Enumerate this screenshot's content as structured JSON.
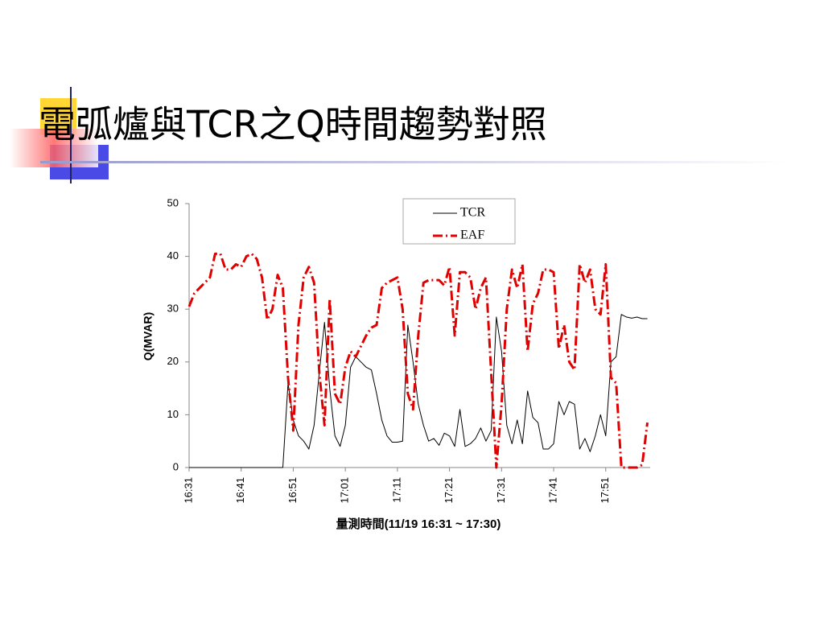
{
  "chart_data": {
    "type": "line",
    "title": "電弧爐與TCR之Q時間趨勢對照",
    "x_label": "量測時間(11/19 16:31 ~ 17:30)",
    "y_label": "Q(MVAR)",
    "x": [
      0,
      1,
      2,
      3,
      4,
      5,
      6,
      7,
      8,
      9,
      10,
      11,
      12,
      13,
      14,
      15,
      16,
      17,
      18,
      19,
      20,
      21,
      22,
      23,
      24,
      25,
      26,
      27,
      28,
      29,
      30,
      31,
      32,
      33,
      34,
      35,
      36,
      37,
      38,
      39,
      40,
      41,
      42,
      43,
      44,
      45,
      46,
      47,
      48,
      49,
      50,
      51,
      52,
      53,
      54,
      55,
      56,
      57,
      58,
      59,
      60,
      61,
      62,
      63,
      64,
      65,
      66,
      67,
      68,
      69,
      70,
      71,
      72,
      73,
      74,
      75,
      76,
      77,
      78,
      79,
      80,
      81,
      82,
      83,
      84,
      85,
      86,
      87,
      88
    ],
    "series": [
      {
        "name": "TCR",
        "color": "#000000",
        "values": [
          0,
          0,
          0,
          0,
          0,
          0,
          0,
          0,
          0,
          0,
          0,
          0,
          0,
          0,
          0,
          0,
          0,
          0,
          0,
          16,
          9,
          6,
          5,
          3.5,
          8,
          18,
          27.5,
          15,
          6,
          4,
          8,
          19,
          21,
          20,
          19,
          18.5,
          14,
          9,
          6,
          4.8,
          4.8,
          5,
          27,
          20,
          12,
          8,
          5,
          5.5,
          4.2,
          6.5,
          6,
          4,
          11,
          4,
          4.5,
          5.5,
          7.5,
          5,
          7,
          28.5,
          22,
          8,
          4.5,
          9,
          4.5,
          14.5,
          9.5,
          8.5,
          3.5,
          3.5,
          4.5,
          12.5,
          10,
          12.5,
          12,
          3.5,
          5.5,
          3,
          6,
          10,
          6,
          20,
          21,
          29,
          28.5,
          28.3,
          28.5,
          28.2,
          28.2
        ]
      },
      {
        "name": "EAF",
        "color": "#e00000",
        "values": [
          30.5,
          33,
          34,
          35,
          36,
          40.5,
          40.5,
          37.5,
          37.5,
          38.5,
          38,
          40,
          40.5,
          39.5,
          36,
          28,
          30,
          36.5,
          34,
          17,
          7,
          27,
          36,
          38,
          35,
          18,
          8,
          32,
          14,
          12,
          19,
          22,
          21,
          23,
          25,
          26.5,
          27,
          34,
          35,
          35.5,
          36,
          30,
          14,
          11,
          25,
          35,
          35.5,
          35.5,
          35.5,
          34.5,
          38,
          25,
          37,
          37,
          36,
          30,
          34,
          36,
          18,
          0,
          12,
          30,
          37.5,
          34,
          38.5,
          22,
          31,
          33,
          37.5,
          37.5,
          37,
          22.5,
          27,
          20,
          18.5,
          38.5,
          35,
          37.5,
          30,
          29,
          38.5,
          17,
          16,
          0,
          0,
          0,
          0,
          0.5,
          8.5
        ]
      }
    ],
    "xlim": [
      0,
      89
    ],
    "xticks": [
      {
        "value": 0,
        "label": "16:31"
      },
      {
        "value": 10,
        "label": "16:41"
      },
      {
        "value": 20,
        "label": "16:51"
      },
      {
        "value": 30,
        "label": "17:01"
      },
      {
        "value": 40,
        "label": "17:11"
      },
      {
        "value": 50,
        "label": "17:21"
      },
      {
        "value": 60,
        "label": "17:31"
      },
      {
        "value": 70,
        "label": "17:41"
      },
      {
        "value": 80,
        "label": "17:51"
      }
    ],
    "ylim": [
      0,
      50
    ],
    "yticks": [
      0,
      10,
      20,
      30,
      40,
      50
    ],
    "legend": "top-right"
  }
}
